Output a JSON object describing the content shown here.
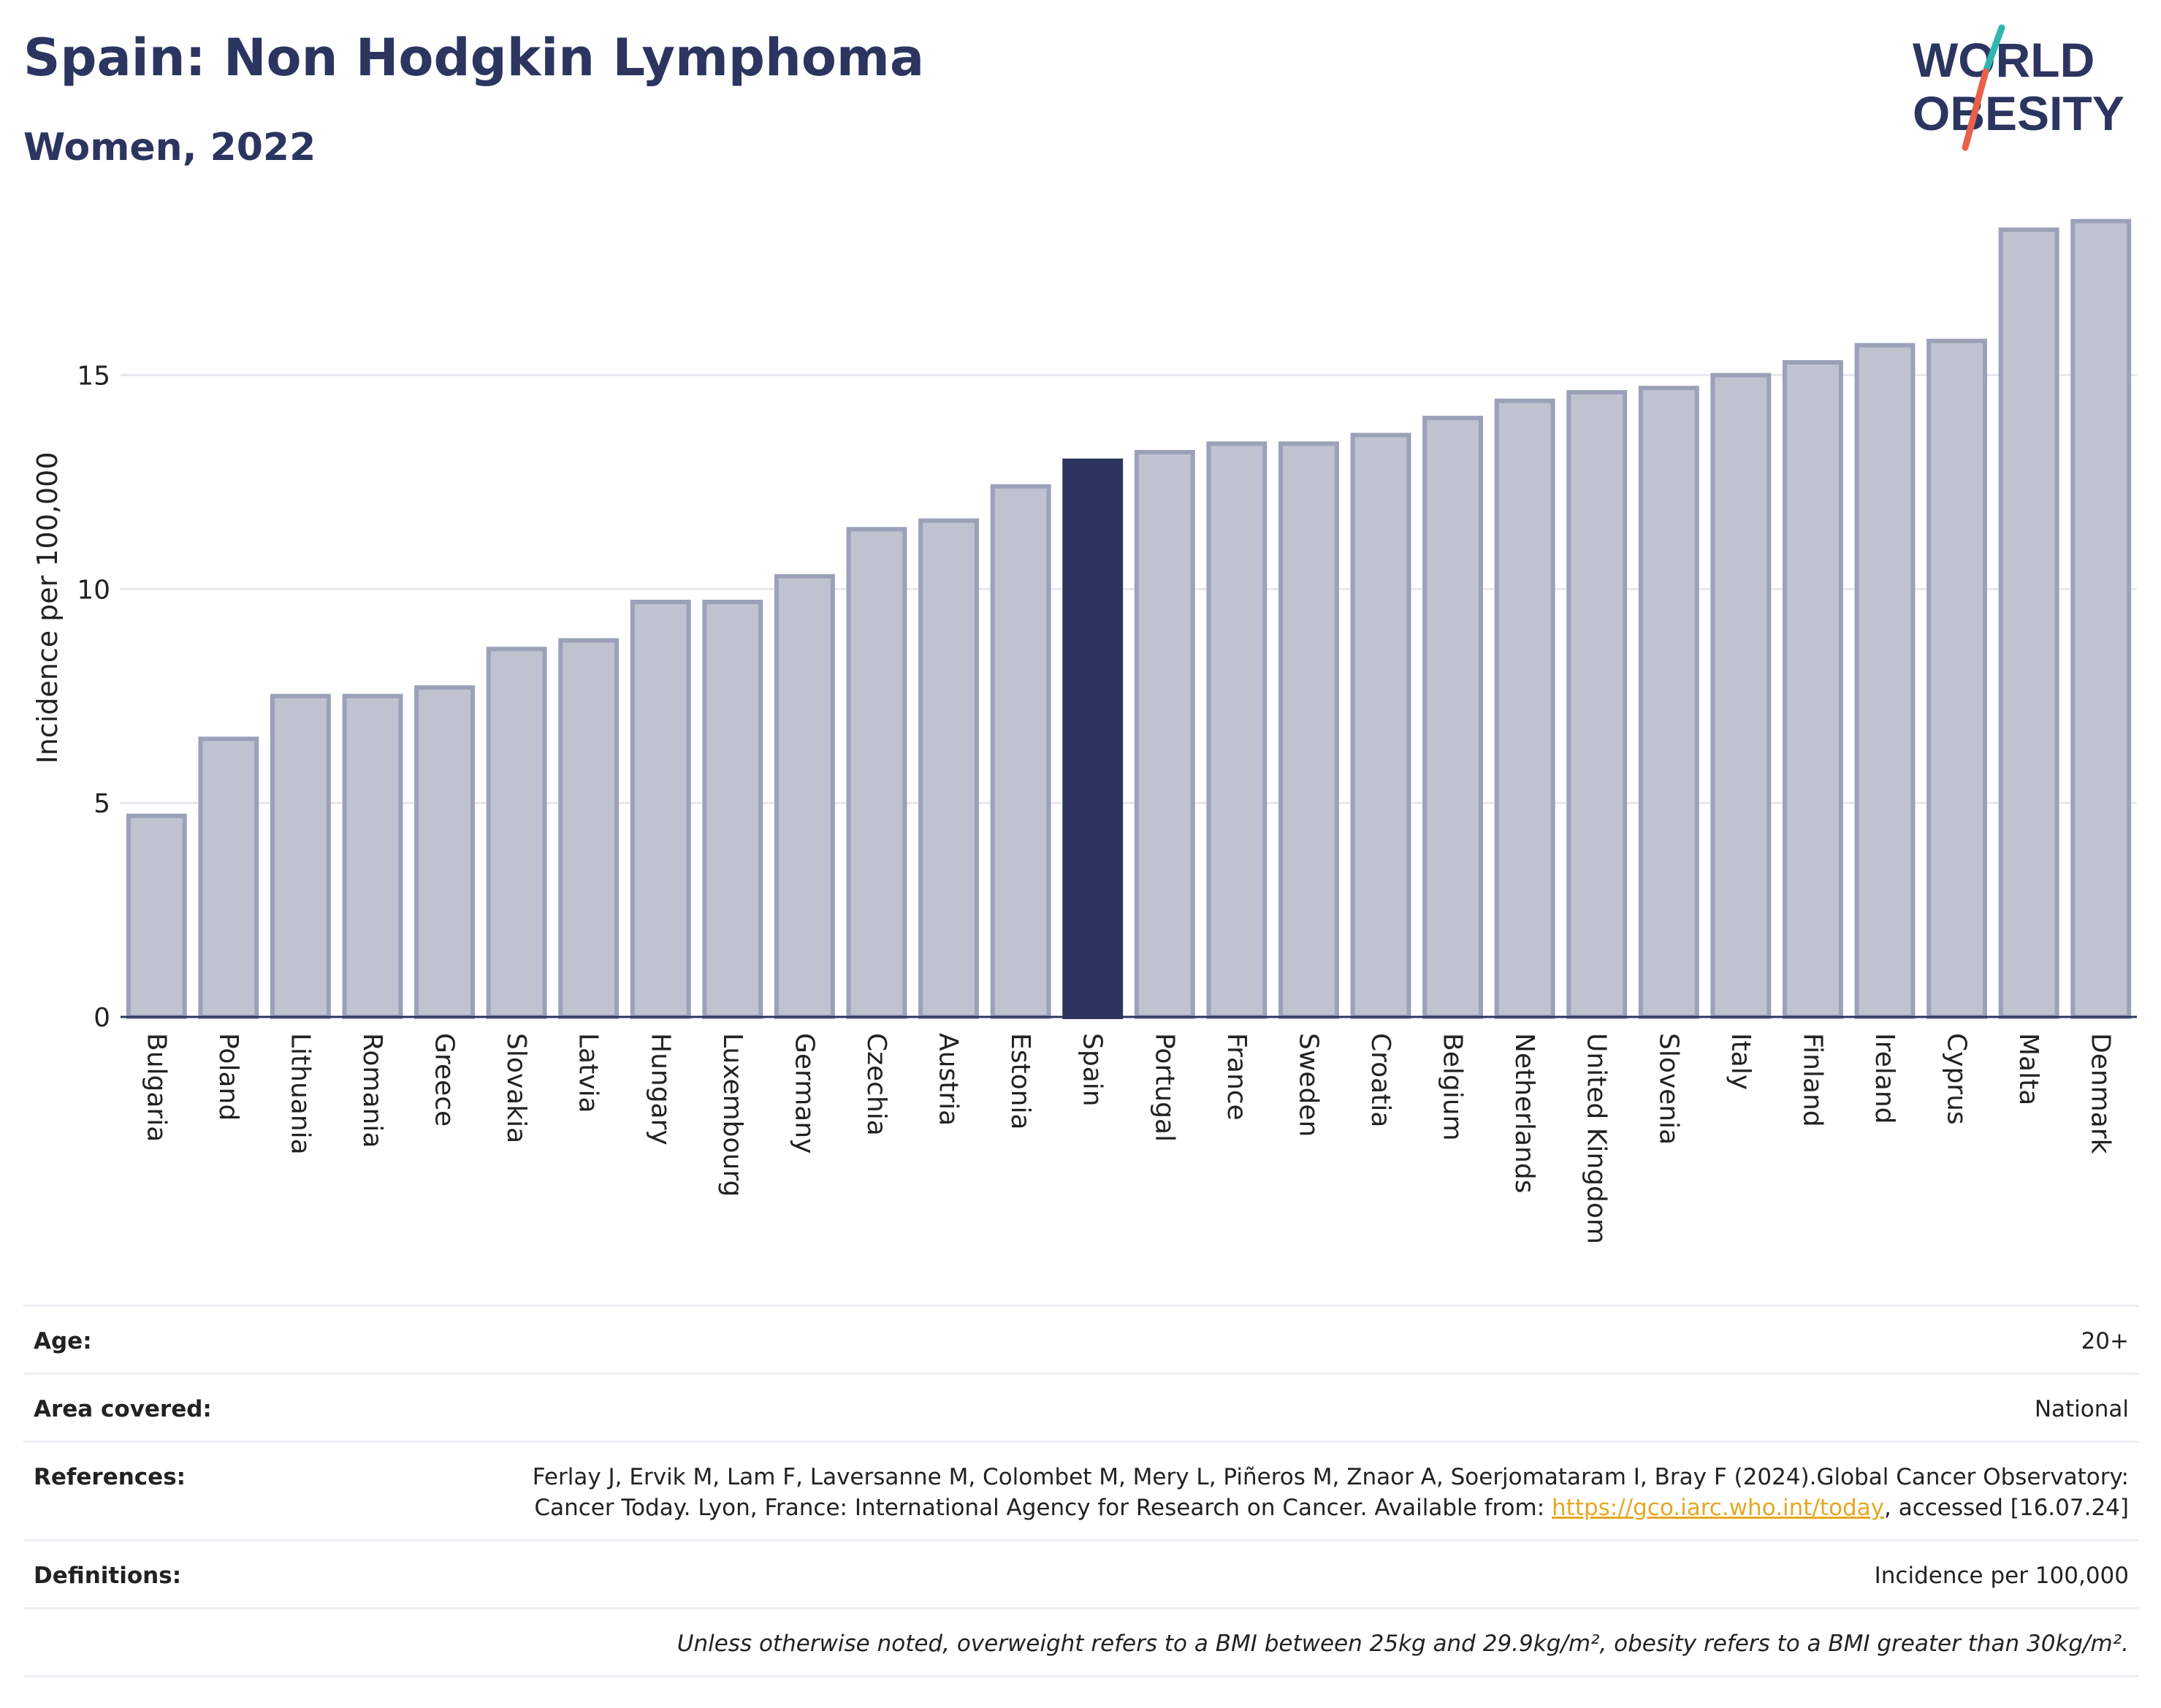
{
  "title": "Spain: Non Hodgkin Lymphoma",
  "subtitle": "Women, 2022",
  "logo": {
    "line1": "WORLD",
    "line2": "OBESITY"
  },
  "colors": {
    "highlight": "#2b3560",
    "bar_fill": "#bfc3d0",
    "bar_stroke": "#9aa1b8",
    "accent_red": "#e8604c",
    "accent_teal": "#2fb6ad"
  },
  "chart_data": {
    "type": "bar",
    "ylabel": "Incidence per 100,000",
    "ylim": [
      0,
      19.5
    ],
    "yticks": [
      0,
      5,
      10,
      15
    ],
    "grid": true,
    "highlight": "Spain",
    "categories": [
      "Bulgaria",
      "Poland",
      "Lithuania",
      "Romania",
      "Greece",
      "Slovakia",
      "Latvia",
      "Hungary",
      "Luxembourg",
      "Germany",
      "Czechia",
      "Austria",
      "Estonia",
      "Spain",
      "Portugal",
      "France",
      "Sweden",
      "Croatia",
      "Belgium",
      "Netherlands",
      "United Kingdom",
      "Slovenia",
      "Italy",
      "Finland",
      "Ireland",
      "Cyprus",
      "Malta",
      "Denmark"
    ],
    "values": [
      4.7,
      6.5,
      7.5,
      7.5,
      7.7,
      8.6,
      8.8,
      9.7,
      9.7,
      10.3,
      11.4,
      11.6,
      12.4,
      13.0,
      13.2,
      13.4,
      13.4,
      13.6,
      14.0,
      14.4,
      14.6,
      14.7,
      15.0,
      15.3,
      15.7,
      15.8,
      18.4,
      18.6
    ]
  },
  "meta": {
    "age_label": "Age:",
    "age_value": "20+",
    "area_label": "Area covered:",
    "area_value": "National",
    "references_label": "References:",
    "references_text": "Ferlay J, Ervik M, Lam F, Laversanne M, Colombet M, Mery L, Piñeros M, Znaor A, Soerjomataram I, Bray F (2024).Global Cancer Observatory: Cancer Today. Lyon, France: International Agency for Research on Cancer. Available from: ",
    "references_link": "https://gco.iarc.who.int/today",
    "references_tail": ", accessed [16.07.24]",
    "definitions_label": "Definitions:",
    "definitions_value": "Incidence per 100,000",
    "note": "Unless otherwise noted, overweight refers to a BMI between 25kg and 29.9kg/m², obesity refers to a BMI greater than 30kg/m²."
  }
}
